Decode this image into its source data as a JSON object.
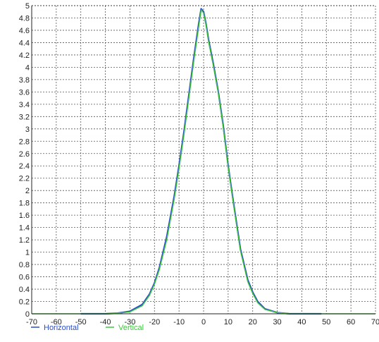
{
  "chart_data": {
    "type": "line",
    "title": "",
    "xlabel": "",
    "ylabel": "",
    "xlim": [
      -70,
      70
    ],
    "ylim": [
      0,
      5
    ],
    "xticks": [
      -70,
      -60,
      -50,
      -40,
      -30,
      -20,
      -10,
      0,
      10,
      20,
      30,
      40,
      50,
      60,
      70
    ],
    "xtick_labels": [
      "-70",
      "-60",
      "-50",
      "-40",
      "-30",
      "-20",
      "-10",
      "0",
      "10",
      "20",
      "30",
      "40",
      "50",
      "60",
      "70"
    ],
    "yticks": [
      0,
      0.2,
      0.4,
      0.6,
      0.8,
      1,
      1.2,
      1.4,
      1.6,
      1.8,
      2,
      2.2,
      2.4,
      2.6,
      2.8,
      3,
      3.2,
      3.4,
      3.6,
      3.8,
      4,
      4.2,
      4.4,
      4.6,
      4.8,
      5
    ],
    "ytick_labels": [
      "0",
      "0.2",
      "0.4",
      "0.6",
      "0.8",
      "1",
      "1.2",
      "1.4",
      "1.6",
      "1.8",
      "2",
      "2.2",
      "2.4",
      "2.6",
      "2.8",
      "3",
      "3.2",
      "3.4",
      "3.6",
      "3.8",
      "4",
      "4.2",
      "4.4",
      "4.6",
      "4.8",
      "5"
    ],
    "grid": true,
    "legend_position": "bottom-left",
    "series": [
      {
        "name": "Horizontal",
        "color": "#2b4cc9",
        "x": [
          -50,
          -40,
          -35,
          -30,
          -25,
          -22,
          -20,
          -18,
          -15,
          -12,
          -10,
          -8,
          -6,
          -4,
          -2,
          -1,
          0,
          1,
          2,
          4,
          6,
          8,
          10,
          12,
          15,
          18,
          20,
          22,
          25,
          30,
          35,
          40,
          48
        ],
        "y": [
          0.0,
          0.0,
          0.01,
          0.04,
          0.15,
          0.32,
          0.5,
          0.75,
          1.25,
          1.9,
          2.4,
          2.95,
          3.55,
          4.15,
          4.7,
          4.95,
          4.9,
          4.7,
          4.45,
          4.05,
          3.6,
          3.05,
          2.4,
          1.85,
          1.05,
          0.55,
          0.35,
          0.2,
          0.08,
          0.02,
          0.0,
          0.0,
          0.0
        ]
      },
      {
        "name": "Vertical",
        "color": "#3cc83c",
        "x": [
          -70,
          -40,
          -35,
          -30,
          -25,
          -22,
          -20,
          -18,
          -15,
          -12,
          -10,
          -8,
          -6,
          -4,
          -2,
          -1,
          0,
          1,
          2,
          4,
          6,
          8,
          10,
          12,
          15,
          18,
          20,
          22,
          25,
          30,
          35,
          40,
          70
        ],
        "y": [
          0.0,
          0.0,
          0.01,
          0.03,
          0.13,
          0.3,
          0.48,
          0.72,
          1.2,
          1.85,
          2.35,
          2.9,
          3.5,
          4.1,
          4.65,
          4.93,
          4.88,
          4.68,
          4.42,
          4.02,
          3.58,
          3.02,
          2.38,
          1.82,
          1.02,
          0.52,
          0.33,
          0.18,
          0.07,
          0.02,
          0.0,
          0.0,
          0.0
        ]
      }
    ]
  }
}
